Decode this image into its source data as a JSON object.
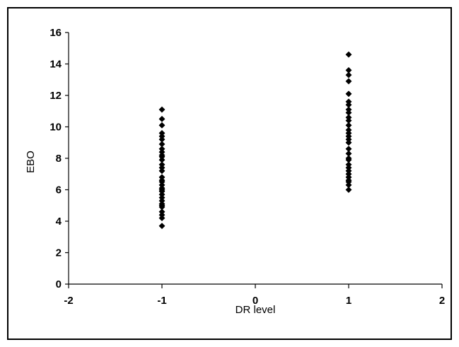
{
  "chart_data": {
    "type": "scatter",
    "title": "",
    "xlabel": "DR level",
    "ylabel": "EBO",
    "xlim": [
      -2,
      2
    ],
    "ylim": [
      0,
      16
    ],
    "x_ticks": [
      -2,
      -1,
      0,
      1,
      2
    ],
    "y_ticks": [
      0,
      2,
      4,
      6,
      8,
      10,
      12,
      14,
      16
    ],
    "grid": false,
    "legend": "none",
    "marker": "diamond",
    "marker_color": "#000000",
    "series": [
      {
        "x": [
          -1,
          -1,
          -1,
          -1,
          -1,
          -1,
          -1,
          -1,
          -1,
          -1,
          -1,
          -1,
          -1,
          -1,
          -1,
          -1,
          -1,
          -1,
          -1,
          -1,
          -1,
          -1,
          -1,
          -1,
          -1,
          -1,
          -1,
          -1,
          -1,
          -1,
          -1,
          -1
        ],
        "y": [
          11.1,
          10.5,
          10.1,
          9.6,
          9.2,
          8.9,
          8.6,
          8.4,
          8.1,
          7.9,
          7.6,
          7.2,
          6.8,
          6.5,
          6.3,
          6.1,
          5.9,
          5.7,
          5.5,
          5.3,
          5.1,
          4.9,
          4.6,
          4.4,
          4.2,
          3.7,
          6.0,
          7.4,
          8.2,
          9.4,
          5.0,
          6.6
        ]
      },
      {
        "x": [
          1,
          1,
          1,
          1,
          1,
          1,
          1,
          1,
          1,
          1,
          1,
          1,
          1,
          1,
          1,
          1,
          1,
          1,
          1,
          1,
          1,
          1,
          1,
          1,
          1,
          1,
          1,
          1,
          1,
          1
        ],
        "y": [
          14.6,
          13.6,
          13.3,
          12.9,
          12.1,
          11.6,
          11.4,
          10.9,
          10.6,
          10.4,
          10.1,
          9.8,
          9.6,
          9.4,
          9.0,
          8.6,
          8.3,
          7.9,
          7.6,
          7.4,
          7.2,
          7.0,
          6.8,
          6.6,
          6.5,
          6.3,
          6.0,
          8.0,
          9.2,
          11.1
        ]
      }
    ]
  }
}
